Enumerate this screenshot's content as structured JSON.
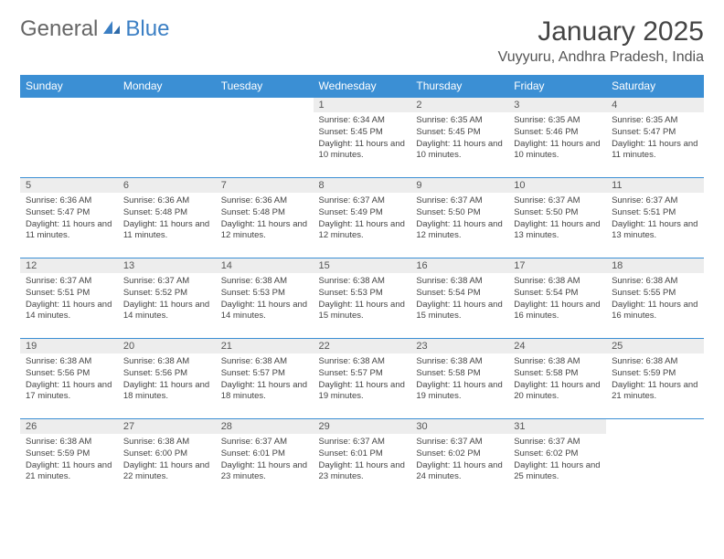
{
  "brand": {
    "part1": "General",
    "part2": "Blue"
  },
  "title": "January 2025",
  "location": "Vuyyuru, Andhra Pradesh, India",
  "colors": {
    "header_bg": "#3b8fd4",
    "header_text": "#ffffff",
    "daynum_bg": "#ededed",
    "border": "#3b8fd4",
    "logo_blue": "#3b7fc4"
  },
  "day_headers": [
    "Sunday",
    "Monday",
    "Tuesday",
    "Wednesday",
    "Thursday",
    "Friday",
    "Saturday"
  ],
  "weeks": [
    [
      null,
      null,
      null,
      {
        "n": "1",
        "sr": "6:34 AM",
        "ss": "5:45 PM",
        "dl": "11 hours and 10 minutes."
      },
      {
        "n": "2",
        "sr": "6:35 AM",
        "ss": "5:45 PM",
        "dl": "11 hours and 10 minutes."
      },
      {
        "n": "3",
        "sr": "6:35 AM",
        "ss": "5:46 PM",
        "dl": "11 hours and 10 minutes."
      },
      {
        "n": "4",
        "sr": "6:35 AM",
        "ss": "5:47 PM",
        "dl": "11 hours and 11 minutes."
      }
    ],
    [
      {
        "n": "5",
        "sr": "6:36 AM",
        "ss": "5:47 PM",
        "dl": "11 hours and 11 minutes."
      },
      {
        "n": "6",
        "sr": "6:36 AM",
        "ss": "5:48 PM",
        "dl": "11 hours and 11 minutes."
      },
      {
        "n": "7",
        "sr": "6:36 AM",
        "ss": "5:48 PM",
        "dl": "11 hours and 12 minutes."
      },
      {
        "n": "8",
        "sr": "6:37 AM",
        "ss": "5:49 PM",
        "dl": "11 hours and 12 minutes."
      },
      {
        "n": "9",
        "sr": "6:37 AM",
        "ss": "5:50 PM",
        "dl": "11 hours and 12 minutes."
      },
      {
        "n": "10",
        "sr": "6:37 AM",
        "ss": "5:50 PM",
        "dl": "11 hours and 13 minutes."
      },
      {
        "n": "11",
        "sr": "6:37 AM",
        "ss": "5:51 PM",
        "dl": "11 hours and 13 minutes."
      }
    ],
    [
      {
        "n": "12",
        "sr": "6:37 AM",
        "ss": "5:51 PM",
        "dl": "11 hours and 14 minutes."
      },
      {
        "n": "13",
        "sr": "6:37 AM",
        "ss": "5:52 PM",
        "dl": "11 hours and 14 minutes."
      },
      {
        "n": "14",
        "sr": "6:38 AM",
        "ss": "5:53 PM",
        "dl": "11 hours and 14 minutes."
      },
      {
        "n": "15",
        "sr": "6:38 AM",
        "ss": "5:53 PM",
        "dl": "11 hours and 15 minutes."
      },
      {
        "n": "16",
        "sr": "6:38 AM",
        "ss": "5:54 PM",
        "dl": "11 hours and 15 minutes."
      },
      {
        "n": "17",
        "sr": "6:38 AM",
        "ss": "5:54 PM",
        "dl": "11 hours and 16 minutes."
      },
      {
        "n": "18",
        "sr": "6:38 AM",
        "ss": "5:55 PM",
        "dl": "11 hours and 16 minutes."
      }
    ],
    [
      {
        "n": "19",
        "sr": "6:38 AM",
        "ss": "5:56 PM",
        "dl": "11 hours and 17 minutes."
      },
      {
        "n": "20",
        "sr": "6:38 AM",
        "ss": "5:56 PM",
        "dl": "11 hours and 18 minutes."
      },
      {
        "n": "21",
        "sr": "6:38 AM",
        "ss": "5:57 PM",
        "dl": "11 hours and 18 minutes."
      },
      {
        "n": "22",
        "sr": "6:38 AM",
        "ss": "5:57 PM",
        "dl": "11 hours and 19 minutes."
      },
      {
        "n": "23",
        "sr": "6:38 AM",
        "ss": "5:58 PM",
        "dl": "11 hours and 19 minutes."
      },
      {
        "n": "24",
        "sr": "6:38 AM",
        "ss": "5:58 PM",
        "dl": "11 hours and 20 minutes."
      },
      {
        "n": "25",
        "sr": "6:38 AM",
        "ss": "5:59 PM",
        "dl": "11 hours and 21 minutes."
      }
    ],
    [
      {
        "n": "26",
        "sr": "6:38 AM",
        "ss": "5:59 PM",
        "dl": "11 hours and 21 minutes."
      },
      {
        "n": "27",
        "sr": "6:38 AM",
        "ss": "6:00 PM",
        "dl": "11 hours and 22 minutes."
      },
      {
        "n": "28",
        "sr": "6:37 AM",
        "ss": "6:01 PM",
        "dl": "11 hours and 23 minutes."
      },
      {
        "n": "29",
        "sr": "6:37 AM",
        "ss": "6:01 PM",
        "dl": "11 hours and 23 minutes."
      },
      {
        "n": "30",
        "sr": "6:37 AM",
        "ss": "6:02 PM",
        "dl": "11 hours and 24 minutes."
      },
      {
        "n": "31",
        "sr": "6:37 AM",
        "ss": "6:02 PM",
        "dl": "11 hours and 25 minutes."
      },
      null
    ]
  ],
  "labels": {
    "sunrise": "Sunrise:",
    "sunset": "Sunset:",
    "daylight": "Daylight:"
  }
}
